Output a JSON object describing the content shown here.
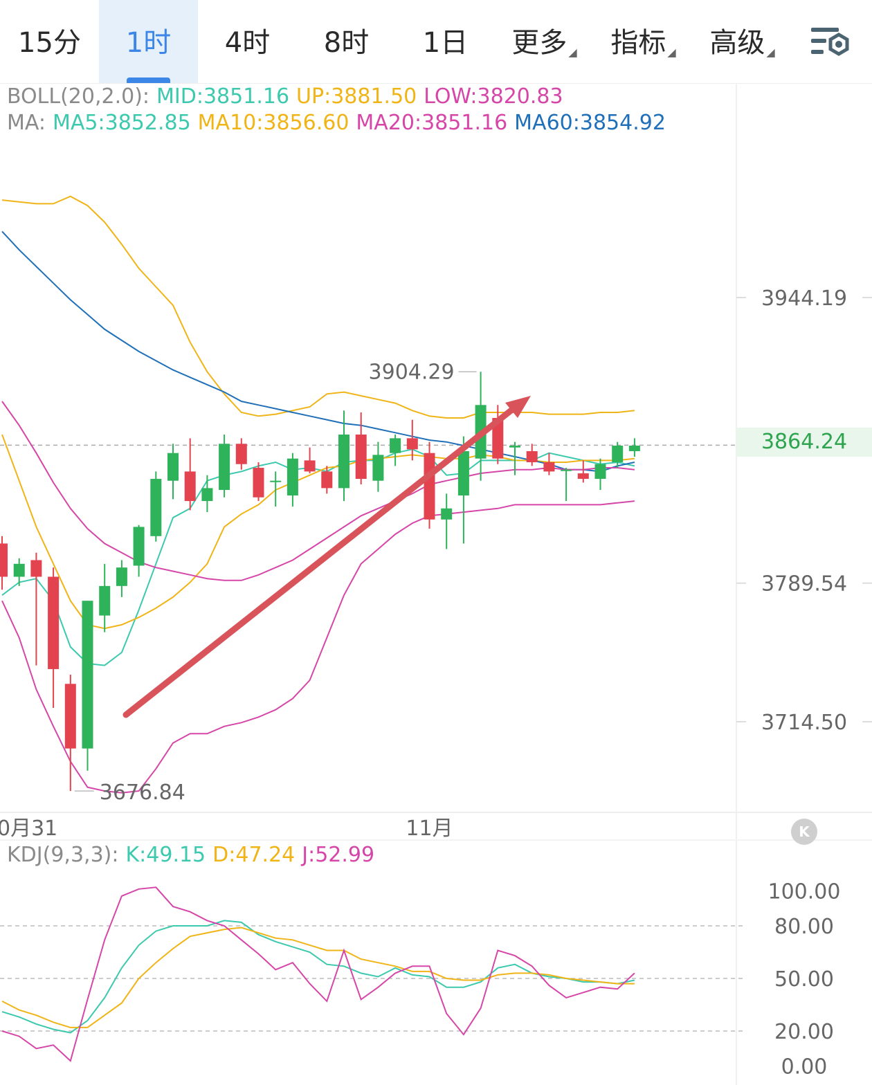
{
  "tabs": [
    {
      "label": "15分",
      "active": false
    },
    {
      "label": "1时",
      "active": true
    },
    {
      "label": "4时",
      "active": false
    },
    {
      "label": "8时",
      "active": false
    },
    {
      "label": "1日",
      "active": false
    },
    {
      "label": "更多",
      "active": false,
      "dropdown": true
    },
    {
      "label": "指标",
      "active": false,
      "dropdown": true
    },
    {
      "label": "高级",
      "active": false,
      "dropdown": true
    }
  ],
  "settings_icon": "chart-settings-icon",
  "boll_legend": {
    "label": "BOLL(20,2.0):",
    "mid": "MID:3851.16",
    "up": "UP:3881.50",
    "low": "LOW:3820.83"
  },
  "ma_legend": {
    "label": "MA:",
    "ma5": "MA5:3852.85",
    "ma10": "MA10:3856.60",
    "ma20": "MA20:3851.16",
    "ma60": "MA60:3854.92"
  },
  "kdj_legend": {
    "label": "KDJ(9,3,3):",
    "k": "K:49.15",
    "d": "D:47.24",
    "j": "J:52.99"
  },
  "current_price": "3864.24",
  "collapse_icon": "collapse-left-icon",
  "colors": {
    "up": "#2fb35a",
    "down": "#e2434e",
    "ma5": "#3cc9ae",
    "ma10": "#f0b417",
    "ma20": "#d646a8",
    "ma60": "#1f70b8",
    "arrow": "#d9535a"
  },
  "chart_data": {
    "type": "candlestick",
    "price_axis_ticks": [
      "3944.19",
      "3789.54",
      "3714.50"
    ],
    "price_range": [
      3660,
      4040
    ],
    "date_labels": [
      "0月31",
      "11月"
    ],
    "high_label": "3904.29",
    "low_label": "3676.84",
    "annotation": "upward arrow",
    "candles": [
      {
        "o": 3811,
        "h": 3815,
        "l": 3786,
        "c": 3793
      },
      {
        "o": 3793,
        "h": 3803,
        "l": 3788,
        "c": 3800
      },
      {
        "o": 3802,
        "h": 3806,
        "l": 3745,
        "c": 3793
      },
      {
        "o": 3793,
        "h": 3798,
        "l": 3722,
        "c": 3743
      },
      {
        "o": 3735,
        "h": 3740,
        "l": 3677,
        "c": 3700
      },
      {
        "o": 3700,
        "h": 3780,
        "l": 3688,
        "c": 3780
      },
      {
        "o": 3772,
        "h": 3800,
        "l": 3763,
        "c": 3788
      },
      {
        "o": 3788,
        "h": 3802,
        "l": 3782,
        "c": 3798
      },
      {
        "o": 3799,
        "h": 3821,
        "l": 3793,
        "c": 3820
      },
      {
        "o": 3815,
        "h": 3850,
        "l": 3812,
        "c": 3846
      },
      {
        "o": 3845,
        "h": 3865,
        "l": 3835,
        "c": 3860
      },
      {
        "o": 3850,
        "h": 3868,
        "l": 3829,
        "c": 3834
      },
      {
        "o": 3834,
        "h": 3848,
        "l": 3828,
        "c": 3841
      },
      {
        "o": 3840,
        "h": 3870,
        "l": 3836,
        "c": 3865
      },
      {
        "o": 3865,
        "h": 3868,
        "l": 3851,
        "c": 3854
      },
      {
        "o": 3852,
        "h": 3855,
        "l": 3834,
        "c": 3836
      },
      {
        "o": 3845,
        "h": 3850,
        "l": 3831,
        "c": 3845
      },
      {
        "o": 3837,
        "h": 3860,
        "l": 3831,
        "c": 3857
      },
      {
        "o": 3856,
        "h": 3863,
        "l": 3849,
        "c": 3850
      },
      {
        "o": 3850,
        "h": 3853,
        "l": 3838,
        "c": 3841
      },
      {
        "o": 3841,
        "h": 3883,
        "l": 3834,
        "c": 3870
      },
      {
        "o": 3870,
        "h": 3882,
        "l": 3843,
        "c": 3846
      },
      {
        "o": 3845,
        "h": 3866,
        "l": 3839,
        "c": 3859
      },
      {
        "o": 3860,
        "h": 3870,
        "l": 3853,
        "c": 3868
      },
      {
        "o": 3868,
        "h": 3878,
        "l": 3856,
        "c": 3862
      },
      {
        "o": 3860,
        "h": 3866,
        "l": 3819,
        "c": 3824
      },
      {
        "o": 3824,
        "h": 3838,
        "l": 3808,
        "c": 3830
      },
      {
        "o": 3837,
        "h": 3869,
        "l": 3811,
        "c": 3861
      },
      {
        "o": 3857,
        "h": 3904,
        "l": 3845,
        "c": 3886
      },
      {
        "o": 3879,
        "h": 3886,
        "l": 3854,
        "c": 3857
      },
      {
        "o": 3863,
        "h": 3866,
        "l": 3848,
        "c": 3864
      },
      {
        "o": 3861,
        "h": 3865,
        "l": 3853,
        "c": 3855
      },
      {
        "o": 3855,
        "h": 3860,
        "l": 3848,
        "c": 3850
      },
      {
        "o": 3851,
        "h": 3852,
        "l": 3834,
        "c": 3851
      },
      {
        "o": 3849,
        "h": 3856,
        "l": 3844,
        "c": 3846
      },
      {
        "o": 3846,
        "h": 3857,
        "l": 3840,
        "c": 3854
      },
      {
        "o": 3855,
        "h": 3866,
        "l": 3852,
        "c": 3864
      },
      {
        "o": 3861,
        "h": 3868,
        "l": 3858,
        "c": 3864
      }
    ],
    "ma_lines": [
      {
        "name": "MA5",
        "values": [
          3783,
          3790,
          3792,
          3780,
          3755,
          3746,
          3745,
          3752,
          3775,
          3800,
          3825,
          3830,
          3845,
          3848,
          3850,
          3853,
          3855,
          3851,
          3852,
          3850,
          3855,
          3856,
          3856,
          3860,
          3862,
          3858,
          3848,
          3849,
          3856,
          3856,
          3856,
          3856,
          3860,
          3858,
          3856,
          3854,
          3855,
          3853
        ]
      },
      {
        "name": "MA10",
        "values": [
          3870,
          3845,
          3820,
          3800,
          3780,
          3767,
          3765,
          3767,
          3771,
          3776,
          3782,
          3790,
          3800,
          3820,
          3827,
          3832,
          3840,
          3844,
          3848,
          3852,
          3853,
          3856,
          3857,
          3858,
          3859,
          3858,
          3857,
          3857,
          3859,
          3858,
          3856,
          3856,
          3855,
          3855,
          3856,
          3856,
          3856,
          3857
        ]
      },
      {
        "name": "BOLL UP",
        "values": [
          3997,
          3996,
          3995,
          3995,
          3999,
          3994,
          3985,
          3973,
          3960,
          3950,
          3940,
          3920,
          3904,
          3892,
          3882,
          3880,
          3881,
          3883,
          3885,
          3892,
          3893,
          3891,
          3889,
          3887,
          3883,
          3880,
          3879,
          3879,
          3882,
          3882,
          3882,
          3882,
          3881,
          3881,
          3881,
          3882,
          3882,
          3883
        ]
      },
      {
        "name": "MA60",
        "values": [
          3980,
          3970,
          3961,
          3952,
          3943,
          3935,
          3927,
          3921,
          3915,
          3910,
          3905,
          3901,
          3897,
          3893,
          3888,
          3886,
          3884,
          3882,
          3880,
          3878,
          3876,
          3875,
          3873,
          3871,
          3869,
          3867,
          3866,
          3864,
          3862,
          3860,
          3858,
          3856,
          3854,
          3851,
          3851,
          3850,
          3853,
          3855
        ]
      },
      {
        "name": "MID",
        "values": [
          3888,
          3875,
          3860,
          3844,
          3830,
          3819,
          3811,
          3806,
          3801,
          3798,
          3796,
          3794,
          3792,
          3791,
          3791,
          3794,
          3798,
          3802,
          3808,
          3814,
          3820,
          3826,
          3830,
          3834,
          3838,
          3843,
          3845,
          3847,
          3849,
          3850,
          3851,
          3851,
          3852,
          3851,
          3851,
          3852,
          3852,
          3851
        ]
      },
      {
        "name": "BOLL LOW",
        "values": [
          3780,
          3760,
          3732,
          3712,
          3693,
          3679,
          3677,
          3676,
          3677,
          3689,
          3703,
          3708,
          3708,
          3712,
          3714,
          3717,
          3721,
          3727,
          3737,
          3760,
          3783,
          3800,
          3808,
          3816,
          3822,
          3826,
          3827,
          3828,
          3829,
          3830,
          3832,
          3832,
          3832,
          3832,
          3832,
          3832,
          3833,
          3834
        ]
      }
    ],
    "kdj": {
      "axis_ticks": [
        "100.00",
        "80.00",
        "50.00",
        "20.00",
        "0.00"
      ],
      "range": [
        0,
        100
      ],
      "series": [
        {
          "name": "K",
          "values": [
            31,
            28,
            24,
            21,
            19,
            26,
            39,
            56,
            69,
            77,
            80,
            80,
            80,
            83,
            82,
            75,
            71,
            68,
            65,
            58,
            57,
            53,
            51,
            56,
            52,
            51,
            45,
            45,
            48,
            56,
            58,
            53,
            51,
            50,
            48,
            48,
            47,
            49
          ]
        },
        {
          "name": "D",
          "values": [
            37,
            32,
            29,
            25,
            22,
            22,
            29,
            36,
            50,
            59,
            67,
            74,
            76,
            78,
            79,
            76,
            73,
            72,
            69,
            66,
            66,
            61,
            59,
            57,
            54,
            54,
            50,
            49,
            49,
            52,
            53,
            53,
            52,
            50,
            49,
            48,
            47,
            47
          ]
        },
        {
          "name": "J",
          "values": [
            20,
            17,
            10,
            12,
            3,
            38,
            72,
            97,
            101,
            102,
            91,
            88,
            83,
            80,
            72,
            64,
            55,
            59,
            47,
            37,
            66,
            38,
            45,
            53,
            57,
            57,
            30,
            18,
            33,
            66,
            63,
            57,
            46,
            39,
            42,
            45,
            44,
            53
          ]
        }
      ]
    }
  }
}
